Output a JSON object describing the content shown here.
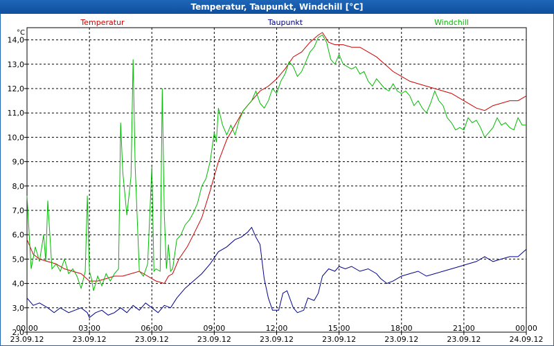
{
  "window": {
    "title": "Temperatur, Taupunkt, Windchill [°C]"
  },
  "chart_data": {
    "type": "line",
    "title": "Temperatur, Taupunkt, Windchill [°C]",
    "ylabel": "°C",
    "xlabel": "",
    "ylim": [
      2.0,
      14.5
    ],
    "xlim": [
      0,
      24
    ],
    "grid": true,
    "y_ticks": [
      "2,0",
      "3,0",
      "4,0",
      "5,0",
      "6,0",
      "7,0",
      "8,0",
      "9,0",
      "10,0",
      "11,0",
      "12,0",
      "13,0",
      "14,0"
    ],
    "x_ticks": [
      {
        "time": "00:00",
        "date": "23.09.12"
      },
      {
        "time": "03:00",
        "date": "23.09.12"
      },
      {
        "time": "06:00",
        "date": "23.09.12"
      },
      {
        "time": "09:00",
        "date": "23.09.12"
      },
      {
        "time": "12:00",
        "date": "23.09.12"
      },
      {
        "time": "15:00",
        "date": "23.09.12"
      },
      {
        "time": "18:00",
        "date": "23.09.12"
      },
      {
        "time": "21:00",
        "date": "23.09.12"
      },
      {
        "time": "00:00",
        "date": "24.09.12"
      }
    ],
    "series": [
      {
        "name": "Temperatur",
        "color": "#cc0000",
        "points": [
          [
            0.0,
            5.8
          ],
          [
            0.3,
            5.2
          ],
          [
            0.6,
            5.0
          ],
          [
            1.0,
            4.9
          ],
          [
            1.4,
            4.8
          ],
          [
            1.8,
            4.6
          ],
          [
            2.2,
            4.5
          ],
          [
            2.6,
            4.4
          ],
          [
            3.0,
            4.1
          ],
          [
            3.4,
            4.1
          ],
          [
            3.8,
            4.2
          ],
          [
            4.2,
            4.3
          ],
          [
            4.6,
            4.3
          ],
          [
            5.0,
            4.4
          ],
          [
            5.4,
            4.5
          ],
          [
            5.8,
            4.3
          ],
          [
            6.2,
            4.1
          ],
          [
            6.6,
            4.0
          ],
          [
            6.8,
            4.3
          ],
          [
            7.0,
            4.4
          ],
          [
            7.3,
            5.0
          ],
          [
            7.7,
            5.5
          ],
          [
            8.0,
            6.0
          ],
          [
            8.4,
            6.7
          ],
          [
            8.8,
            7.8
          ],
          [
            9.2,
            9.0
          ],
          [
            9.6,
            9.9
          ],
          [
            10.0,
            10.5
          ],
          [
            10.4,
            11.1
          ],
          [
            10.8,
            11.5
          ],
          [
            11.2,
            11.9
          ],
          [
            11.6,
            12.1
          ],
          [
            12.0,
            12.4
          ],
          [
            12.4,
            12.8
          ],
          [
            12.8,
            13.3
          ],
          [
            13.2,
            13.5
          ],
          [
            13.6,
            13.9
          ],
          [
            14.0,
            14.2
          ],
          [
            14.2,
            14.3
          ],
          [
            14.5,
            13.9
          ],
          [
            14.8,
            13.8
          ],
          [
            15.2,
            13.8
          ],
          [
            15.6,
            13.7
          ],
          [
            16.0,
            13.7
          ],
          [
            16.4,
            13.5
          ],
          [
            16.8,
            13.3
          ],
          [
            17.2,
            13.0
          ],
          [
            17.6,
            12.7
          ],
          [
            18.0,
            12.5
          ],
          [
            18.4,
            12.3
          ],
          [
            18.8,
            12.2
          ],
          [
            19.2,
            12.1
          ],
          [
            19.6,
            12.0
          ],
          [
            20.0,
            11.9
          ],
          [
            20.4,
            11.8
          ],
          [
            20.8,
            11.6
          ],
          [
            21.2,
            11.4
          ],
          [
            21.6,
            11.2
          ],
          [
            22.0,
            11.1
          ],
          [
            22.4,
            11.3
          ],
          [
            22.8,
            11.4
          ],
          [
            23.2,
            11.5
          ],
          [
            23.6,
            11.5
          ],
          [
            24.0,
            11.7
          ]
        ]
      },
      {
        "name": "Taupunkt",
        "color": "#00008b",
        "points": [
          [
            0.0,
            3.4
          ],
          [
            0.3,
            3.1
          ],
          [
            0.6,
            3.2
          ],
          [
            1.0,
            3.0
          ],
          [
            1.3,
            2.8
          ],
          [
            1.6,
            3.0
          ],
          [
            2.0,
            2.8
          ],
          [
            2.3,
            2.9
          ],
          [
            2.6,
            3.0
          ],
          [
            2.9,
            2.8
          ],
          [
            3.0,
            2.6
          ],
          [
            3.3,
            2.8
          ],
          [
            3.6,
            2.9
          ],
          [
            3.9,
            2.7
          ],
          [
            4.2,
            2.8
          ],
          [
            4.5,
            3.0
          ],
          [
            4.8,
            2.8
          ],
          [
            5.1,
            3.1
          ],
          [
            5.4,
            2.9
          ],
          [
            5.7,
            3.2
          ],
          [
            6.0,
            3.0
          ],
          [
            6.3,
            2.8
          ],
          [
            6.6,
            3.1
          ],
          [
            6.9,
            3.0
          ],
          [
            7.2,
            3.4
          ],
          [
            7.6,
            3.8
          ],
          [
            8.0,
            4.1
          ],
          [
            8.4,
            4.4
          ],
          [
            8.8,
            4.8
          ],
          [
            9.2,
            5.3
          ],
          [
            9.6,
            5.5
          ],
          [
            10.0,
            5.8
          ],
          [
            10.3,
            5.9
          ],
          [
            10.6,
            6.1
          ],
          [
            10.8,
            6.3
          ],
          [
            11.0,
            5.9
          ],
          [
            11.2,
            5.6
          ],
          [
            11.4,
            4.2
          ],
          [
            11.6,
            3.4
          ],
          [
            11.8,
            2.9
          ],
          [
            12.1,
            2.9
          ],
          [
            12.3,
            3.6
          ],
          [
            12.5,
            3.7
          ],
          [
            12.8,
            3.0
          ],
          [
            13.0,
            2.8
          ],
          [
            13.3,
            2.9
          ],
          [
            13.5,
            3.4
          ],
          [
            13.8,
            3.3
          ],
          [
            14.0,
            3.6
          ],
          [
            14.2,
            4.3
          ],
          [
            14.5,
            4.6
          ],
          [
            14.8,
            4.5
          ],
          [
            15.0,
            4.7
          ],
          [
            15.3,
            4.6
          ],
          [
            15.6,
            4.7
          ],
          [
            16.0,
            4.5
          ],
          [
            16.4,
            4.6
          ],
          [
            16.8,
            4.4
          ],
          [
            17.0,
            4.2
          ],
          [
            17.3,
            4.0
          ],
          [
            17.6,
            4.1
          ],
          [
            18.0,
            4.3
          ],
          [
            18.4,
            4.4
          ],
          [
            18.8,
            4.5
          ],
          [
            19.2,
            4.3
          ],
          [
            19.6,
            4.4
          ],
          [
            20.0,
            4.5
          ],
          [
            20.4,
            4.6
          ],
          [
            20.8,
            4.7
          ],
          [
            21.2,
            4.8
          ],
          [
            21.6,
            4.9
          ],
          [
            22.0,
            5.1
          ],
          [
            22.4,
            4.9
          ],
          [
            22.8,
            5.0
          ],
          [
            23.2,
            5.1
          ],
          [
            23.6,
            5.1
          ],
          [
            24.0,
            5.4
          ]
        ]
      },
      {
        "name": "Windchill",
        "color": "#00bb00",
        "points": [
          [
            0.0,
            7.6
          ],
          [
            0.2,
            4.6
          ],
          [
            0.4,
            5.5
          ],
          [
            0.6,
            4.9
          ],
          [
            0.8,
            6.0
          ],
          [
            0.9,
            4.9
          ],
          [
            1.0,
            7.4
          ],
          [
            1.2,
            4.6
          ],
          [
            1.4,
            4.8
          ],
          [
            1.6,
            4.5
          ],
          [
            1.8,
            5.0
          ],
          [
            2.0,
            4.4
          ],
          [
            2.2,
            4.6
          ],
          [
            2.4,
            4.3
          ],
          [
            2.6,
            3.8
          ],
          [
            2.8,
            4.5
          ],
          [
            2.9,
            7.6
          ],
          [
            3.0,
            4.5
          ],
          [
            3.1,
            4.2
          ],
          [
            3.2,
            3.7
          ],
          [
            3.4,
            4.3
          ],
          [
            3.6,
            3.9
          ],
          [
            3.8,
            4.4
          ],
          [
            4.0,
            4.1
          ],
          [
            4.2,
            4.4
          ],
          [
            4.4,
            4.6
          ],
          [
            4.5,
            10.6
          ],
          [
            4.6,
            8.6
          ],
          [
            4.8,
            6.8
          ],
          [
            5.0,
            8.4
          ],
          [
            5.1,
            13.2
          ],
          [
            5.2,
            8.8
          ],
          [
            5.4,
            4.5
          ],
          [
            5.6,
            4.3
          ],
          [
            5.8,
            4.8
          ],
          [
            6.0,
            8.8
          ],
          [
            6.1,
            4.5
          ],
          [
            6.2,
            4.6
          ],
          [
            6.4,
            4.5
          ],
          [
            6.5,
            12.0
          ],
          [
            6.6,
            6.8
          ],
          [
            6.7,
            4.6
          ],
          [
            6.8,
            5.6
          ],
          [
            6.9,
            4.5
          ],
          [
            7.0,
            4.6
          ],
          [
            7.2,
            5.8
          ],
          [
            7.4,
            6.0
          ],
          [
            7.6,
            6.4
          ],
          [
            7.8,
            6.6
          ],
          [
            8.0,
            6.9
          ],
          [
            8.2,
            7.3
          ],
          [
            8.4,
            8.0
          ],
          [
            8.6,
            8.3
          ],
          [
            8.8,
            9.0
          ],
          [
            9.0,
            10.2
          ],
          [
            9.1,
            9.8
          ],
          [
            9.2,
            11.2
          ],
          [
            9.4,
            10.5
          ],
          [
            9.6,
            10.1
          ],
          [
            9.8,
            10.5
          ],
          [
            10.0,
            10.1
          ],
          [
            10.2,
            10.7
          ],
          [
            10.4,
            11.1
          ],
          [
            10.6,
            11.3
          ],
          [
            10.8,
            11.5
          ],
          [
            11.0,
            11.9
          ],
          [
            11.2,
            11.4
          ],
          [
            11.4,
            11.2
          ],
          [
            11.6,
            11.5
          ],
          [
            11.8,
            12.0
          ],
          [
            12.0,
            11.8
          ],
          [
            12.2,
            12.3
          ],
          [
            12.4,
            12.6
          ],
          [
            12.6,
            13.1
          ],
          [
            12.8,
            12.9
          ],
          [
            13.0,
            12.5
          ],
          [
            13.2,
            12.7
          ],
          [
            13.4,
            13.1
          ],
          [
            13.6,
            13.5
          ],
          [
            13.8,
            13.7
          ],
          [
            14.0,
            14.1
          ],
          [
            14.2,
            14.2
          ],
          [
            14.4,
            13.9
          ],
          [
            14.6,
            13.2
          ],
          [
            14.8,
            13.0
          ],
          [
            15.0,
            13.4
          ],
          [
            15.2,
            13.0
          ],
          [
            15.4,
            12.9
          ],
          [
            15.6,
            12.8
          ],
          [
            15.8,
            12.9
          ],
          [
            16.0,
            12.6
          ],
          [
            16.2,
            12.7
          ],
          [
            16.4,
            12.3
          ],
          [
            16.6,
            12.1
          ],
          [
            16.8,
            12.4
          ],
          [
            17.0,
            12.2
          ],
          [
            17.2,
            12.0
          ],
          [
            17.4,
            11.9
          ],
          [
            17.6,
            12.2
          ],
          [
            17.8,
            11.9
          ],
          [
            18.0,
            11.8
          ],
          [
            18.2,
            11.9
          ],
          [
            18.4,
            11.7
          ],
          [
            18.6,
            11.3
          ],
          [
            18.8,
            11.5
          ],
          [
            19.0,
            11.2
          ],
          [
            19.2,
            11.0
          ],
          [
            19.4,
            11.4
          ],
          [
            19.6,
            11.9
          ],
          [
            19.8,
            11.5
          ],
          [
            20.0,
            11.3
          ],
          [
            20.2,
            10.8
          ],
          [
            20.4,
            10.6
          ],
          [
            20.6,
            10.3
          ],
          [
            20.8,
            10.4
          ],
          [
            21.0,
            10.3
          ],
          [
            21.2,
            10.8
          ],
          [
            21.4,
            10.6
          ],
          [
            21.6,
            10.7
          ],
          [
            21.8,
            10.4
          ],
          [
            22.0,
            10.0
          ],
          [
            22.2,
            10.2
          ],
          [
            22.4,
            10.4
          ],
          [
            22.6,
            10.8
          ],
          [
            22.8,
            10.5
          ],
          [
            23.0,
            10.6
          ],
          [
            23.2,
            10.4
          ],
          [
            23.4,
            10.3
          ],
          [
            23.6,
            10.8
          ],
          [
            23.8,
            10.5
          ],
          [
            24.0,
            10.5
          ]
        ]
      }
    ]
  }
}
